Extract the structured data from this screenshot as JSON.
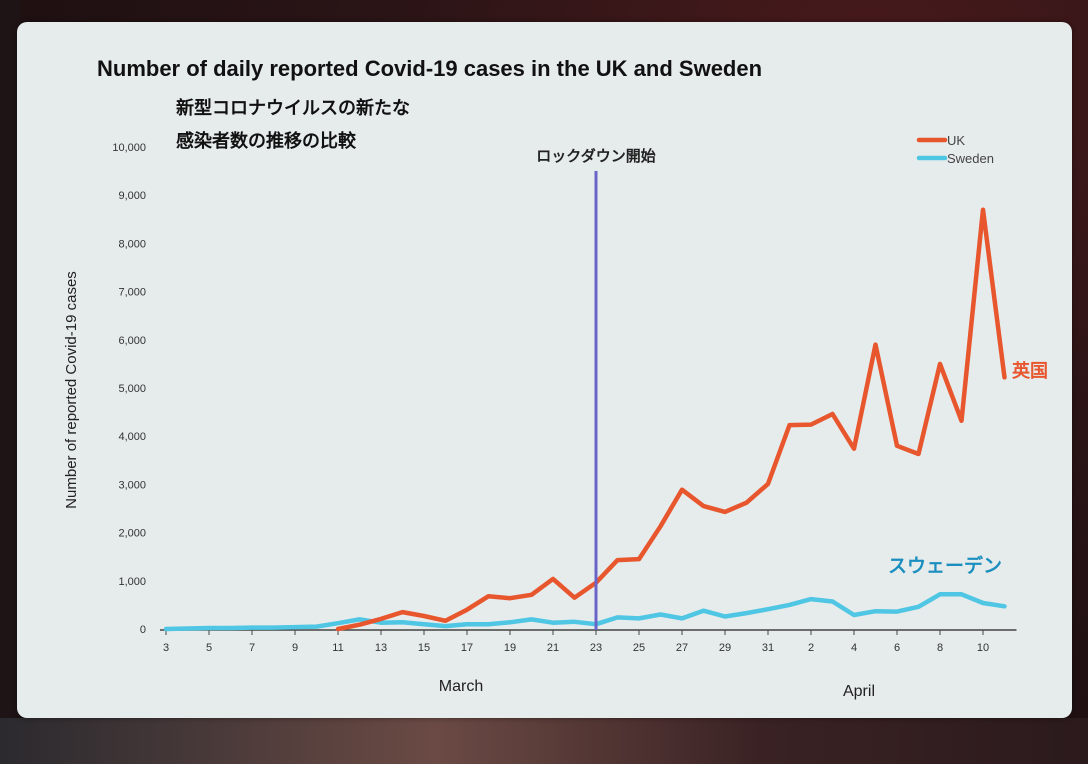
{
  "chart_data": {
    "type": "line",
    "title": "Number of daily reported Covid-19 cases in the UK and Sweden",
    "subtitle_lines": [
      "新型コロナウイルスの新たな",
      "感染者数の推移の比較"
    ],
    "ylabel": "Number of reported Covid-19 cases",
    "ylim": [
      0,
      10000
    ],
    "yticks": [
      0,
      1000,
      2000,
      3000,
      4000,
      5000,
      6000,
      7000,
      8000,
      9000,
      10000
    ],
    "ytick_labels": [
      "0",
      "1,000",
      "2,000",
      "3,000",
      "4,000",
      "5,000",
      "6,000",
      "7,000",
      "8,000",
      "9,000",
      "10,000"
    ],
    "x_days": [
      "3",
      "4",
      "5",
      "6",
      "7",
      "8",
      "9",
      "10",
      "11",
      "12",
      "13",
      "14",
      "15",
      "16",
      "17",
      "18",
      "19",
      "20",
      "21",
      "22",
      "23",
      "24",
      "25",
      "26",
      "27",
      "28",
      "29",
      "30",
      "31",
      "1",
      "2",
      "3",
      "4",
      "5",
      "6",
      "7",
      "8",
      "9",
      "10",
      "11"
    ],
    "xtick_labels": [
      "3",
      "5",
      "7",
      "9",
      "11",
      "13",
      "15",
      "17",
      "19",
      "21",
      "23",
      "25",
      "27",
      "29",
      "31",
      "2",
      "4",
      "6",
      "8",
      "10"
    ],
    "month_labels": [
      "March",
      "April"
    ],
    "grid": false,
    "legend_position": "top-right",
    "series": [
      {
        "name": "UK",
        "color": "#e8562e",
        "values": [
          null,
          null,
          null,
          null,
          null,
          null,
          null,
          null,
          0,
          90,
          210,
          350,
          270,
          170,
          400,
          680,
          640,
          710,
          1040,
          650,
          960,
          1430,
          1450,
          2130,
          2890,
          2550,
          2430,
          2620,
          3010,
          4230,
          4240,
          4460,
          3740,
          5900,
          3800,
          3630,
          5500,
          4320,
          8700,
          5220
        ]
      },
      {
        "name": "Sweden",
        "color": "#4fc6e3",
        "values": [
          0,
          10,
          20,
          20,
          30,
          30,
          40,
          50,
          120,
          200,
          130,
          140,
          100,
          60,
          100,
          100,
          140,
          200,
          130,
          150,
          100,
          240,
          220,
          300,
          220,
          380,
          260,
          330,
          410,
          500,
          620,
          570,
          290,
          370,
          360,
          460,
          720,
          720,
          540,
          470
        ]
      }
    ],
    "annotations": {
      "lockdown_label": "ロックダウン開始",
      "lockdown_day": "23",
      "uk_label": "英国",
      "sweden_label": "スウェーデン"
    }
  }
}
